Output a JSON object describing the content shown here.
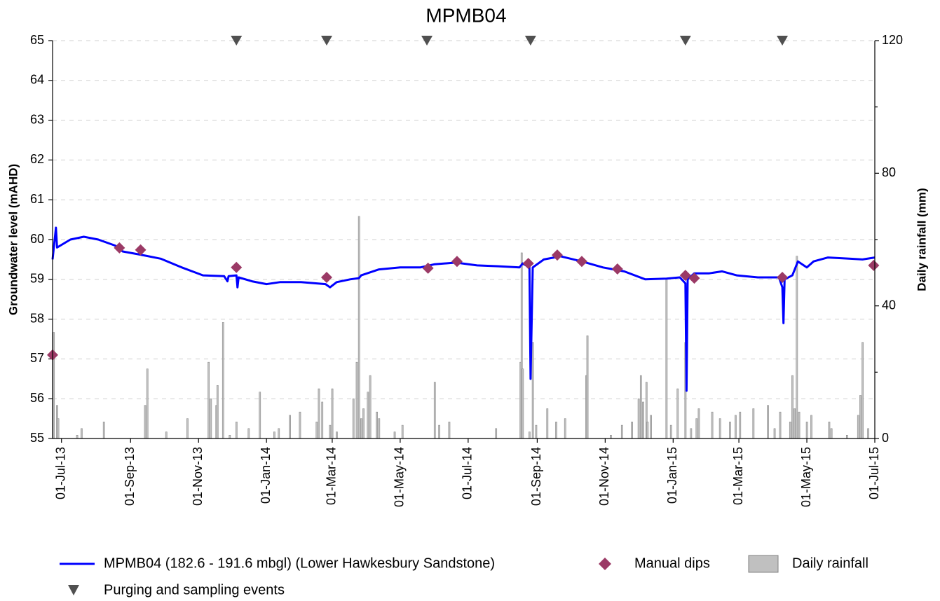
{
  "chart_data": {
    "type": "line",
    "title": "MPMB04",
    "y_label": "Groundwater level (mAHD)",
    "y2_label": "Daily rainfall (mm)",
    "xlim": [
      "2013-06-23",
      "2015-07-01"
    ],
    "xticks": [
      {
        "value": "2013-07-01",
        "label": "01-Jul-13"
      },
      {
        "value": "2013-09-01",
        "label": "01-Sep-13"
      },
      {
        "value": "2013-11-01",
        "label": "01-Nov-13"
      },
      {
        "value": "2014-01-01",
        "label": "01-Jan-14"
      },
      {
        "value": "2014-03-01",
        "label": "01-Mar-14"
      },
      {
        "value": "2014-05-01",
        "label": "01-May-14"
      },
      {
        "value": "2014-07-01",
        "label": "01-Jul-14"
      },
      {
        "value": "2014-09-01",
        "label": "01-Sep-14"
      },
      {
        "value": "2014-11-01",
        "label": "01-Nov-14"
      },
      {
        "value": "2015-01-01",
        "label": "01-Jan-15"
      },
      {
        "value": "2015-03-01",
        "label": "01-Mar-15"
      },
      {
        "value": "2015-05-01",
        "label": "01-May-15"
      },
      {
        "value": "2015-07-01",
        "label": "01-Jul-15"
      }
    ],
    "ylim": [
      55,
      65
    ],
    "yticks": [
      55,
      56,
      57,
      58,
      59,
      60,
      61,
      62,
      63,
      64,
      65
    ],
    "y2lim": [
      0,
      120
    ],
    "y2ticks": [
      0,
      40,
      80,
      120
    ],
    "y2minorticks": [
      20,
      60,
      100
    ],
    "grid": true,
    "legend": "bottom",
    "series": [
      {
        "name": "MPMB04 (182.6 - 191.6 mbgl) (Lower Hawkesbury Sandstone)",
        "type": "line",
        "color": "#0000ff",
        "x": [
          "2013-06-23",
          "2013-06-26",
          "2013-06-27",
          "2013-07-09",
          "2013-07-21",
          "2013-08-03",
          "2013-08-18",
          "2013-08-25",
          "2013-09-10",
          "2013-09-28",
          "2013-10-17",
          "2013-11-05",
          "2013-11-24",
          "2013-11-27",
          "2013-11-28",
          "2013-12-05",
          "2013-12-06",
          "2013-12-07",
          "2013-12-19",
          "2014-01-01",
          "2014-01-13",
          "2014-02-01",
          "2014-02-23",
          "2014-02-27",
          "2014-03-05",
          "2014-03-17",
          "2014-03-25",
          "2014-03-27",
          "2014-04-12",
          "2014-05-01",
          "2014-05-19",
          "2014-06-01",
          "2014-06-20",
          "2014-07-09",
          "2014-07-28",
          "2014-08-16",
          "2014-08-19",
          "2014-08-25",
          "2014-08-26",
          "2014-08-28",
          "2014-09-07",
          "2014-09-22",
          "2014-10-11",
          "2014-10-30",
          "2014-11-18",
          "2014-12-07",
          "2014-12-26",
          "2015-01-07",
          "2015-01-12",
          "2015-01-13",
          "2015-01-14",
          "2015-01-20",
          "2015-02-02",
          "2015-02-14",
          "2015-02-27",
          "2015-03-18",
          "2015-04-06",
          "2015-04-09",
          "2015-04-10",
          "2015-04-11",
          "2015-04-18",
          "2015-04-23",
          "2015-05-01",
          "2015-05-07",
          "2015-05-20",
          "2015-06-08",
          "2015-06-20",
          "2015-07-01"
        ],
        "values": [
          59.5,
          60.3,
          59.8,
          60.0,
          60.07,
          60.0,
          59.85,
          59.7,
          59.62,
          59.52,
          59.3,
          59.1,
          59.08,
          58.95,
          59.08,
          59.1,
          58.8,
          59.05,
          58.95,
          58.88,
          58.93,
          58.93,
          58.88,
          58.8,
          58.93,
          59.0,
          59.03,
          59.1,
          59.25,
          59.3,
          59.3,
          59.38,
          59.42,
          59.35,
          59.33,
          59.3,
          59.4,
          59.3,
          56.5,
          59.3,
          59.5,
          59.58,
          59.45,
          59.3,
          59.2,
          59.0,
          59.02,
          59.05,
          58.9,
          56.2,
          59.0,
          59.15,
          59.15,
          59.2,
          59.1,
          59.05,
          59.05,
          58.8,
          57.9,
          59.0,
          59.1,
          59.45,
          59.3,
          59.45,
          59.55,
          59.52,
          59.5,
          59.55
        ]
      },
      {
        "name": "Manual dips",
        "type": "scatter",
        "marker": "diamond",
        "color": "#9b3a66",
        "x": [
          "2013-06-23",
          "2013-08-22",
          "2013-09-10",
          "2013-12-05",
          "2014-02-24",
          "2014-05-26",
          "2014-06-21",
          "2014-08-24",
          "2014-09-19",
          "2014-10-11",
          "2014-11-12",
          "2015-01-12",
          "2015-01-20",
          "2015-04-09",
          "2015-06-30"
        ],
        "values": [
          57.1,
          59.79,
          59.74,
          59.3,
          59.05,
          59.28,
          59.45,
          59.4,
          59.61,
          59.45,
          59.26,
          59.1,
          59.03,
          59.05,
          59.35
        ]
      },
      {
        "name": "Daily rainfall",
        "type": "bar",
        "axis": "y2",
        "color": "#c0c0c0",
        "x": [
          "2013-06-24",
          "2013-06-27",
          "2013-06-28",
          "2013-07-15",
          "2013-07-19",
          "2013-08-08",
          "2013-09-14",
          "2013-09-16",
          "2013-10-03",
          "2013-10-22",
          "2013-11-10",
          "2013-11-12",
          "2013-11-17",
          "2013-11-18",
          "2013-11-23",
          "2013-11-29",
          "2013-12-05",
          "2013-12-16",
          "2013-12-26",
          "2014-01-08",
          "2014-01-12",
          "2014-01-22",
          "2014-01-31",
          "2014-02-15",
          "2014-02-17",
          "2014-02-20",
          "2014-02-27",
          "2014-03-01",
          "2014-03-05",
          "2014-03-20",
          "2014-03-23",
          "2014-03-25",
          "2014-03-27",
          "2014-03-29",
          "2014-04-02",
          "2014-04-04",
          "2014-04-10",
          "2014-04-12",
          "2014-04-26",
          "2014-05-03",
          "2014-06-01",
          "2014-06-05",
          "2014-06-14",
          "2014-07-26",
          "2014-08-17",
          "2014-08-18",
          "2014-08-19",
          "2014-08-25",
          "2014-08-28",
          "2014-08-31",
          "2014-09-10",
          "2014-09-18",
          "2014-09-26",
          "2014-10-15",
          "2014-10-16",
          "2014-11-06",
          "2014-11-16",
          "2014-11-25",
          "2014-12-01",
          "2014-12-03",
          "2014-12-05",
          "2014-12-08",
          "2014-12-09",
          "2014-12-12",
          "2014-12-26",
          "2014-12-30",
          "2015-01-05",
          "2015-01-12",
          "2015-01-17",
          "2015-01-22",
          "2015-01-24",
          "2015-02-05",
          "2015-02-12",
          "2015-02-21",
          "2015-02-26",
          "2015-03-02",
          "2015-03-14",
          "2015-03-27",
          "2015-04-02",
          "2015-04-07",
          "2015-04-16",
          "2015-04-18",
          "2015-04-20",
          "2015-04-22",
          "2015-04-24",
          "2015-05-01",
          "2015-05-05",
          "2015-05-21",
          "2015-05-23",
          "2015-06-06",
          "2015-06-16",
          "2015-06-18",
          "2015-06-20",
          "2015-06-25"
        ],
        "values": [
          32,
          10,
          6,
          1,
          3,
          5,
          10,
          21,
          2,
          6,
          23,
          12,
          10,
          16,
          35,
          1,
          5,
          3,
          14,
          2,
          3,
          7,
          8,
          5,
          15,
          11,
          4,
          15,
          2,
          12,
          23,
          67,
          6,
          9,
          14,
          19,
          8,
          6,
          2,
          4,
          17,
          4,
          5,
          3,
          23,
          56,
          21,
          2,
          29,
          4,
          9,
          5,
          6,
          19,
          31,
          1,
          4,
          5,
          12,
          19,
          11,
          17,
          5,
          7,
          48,
          4,
          15,
          29,
          3,
          6,
          9,
          8,
          6,
          5,
          7,
          8,
          9,
          10,
          3,
          8,
          5,
          19,
          9,
          55,
          8,
          5,
          7,
          5,
          3,
          1,
          7,
          13,
          29,
          3
        ]
      },
      {
        "name": "Purging and sampling events",
        "type": "event",
        "marker": "triangle",
        "color": "#505050",
        "x": [
          "2013-12-05",
          "2014-02-24",
          "2014-05-25",
          "2014-08-26",
          "2015-01-12",
          "2015-04-09"
        ]
      }
    ]
  }
}
